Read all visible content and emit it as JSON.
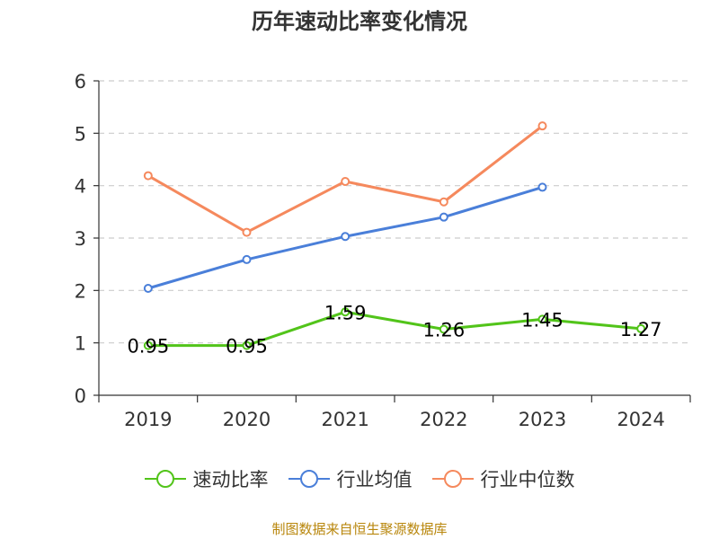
{
  "chart_data": {
    "type": "line",
    "title": "历年速动比率变化情况",
    "categories": [
      "2019",
      "2020",
      "2021",
      "2022",
      "2023",
      "2024"
    ],
    "ylim": [
      0,
      6
    ],
    "yticks": [
      "0",
      "1",
      "2",
      "3",
      "4",
      "5",
      "6"
    ],
    "grid": true,
    "legend_position": "bottom",
    "series": [
      {
        "name": "速动比率",
        "color": "#52c41a",
        "show_labels": true,
        "values": [
          0.95,
          0.95,
          1.59,
          1.26,
          1.45,
          1.27
        ],
        "labels": [
          "0.95",
          "0.95",
          "1.59",
          "1.26",
          "1.45",
          "1.27"
        ]
      },
      {
        "name": "行业均值",
        "color": "#4a7fd9",
        "show_labels": false,
        "values": [
          2.04,
          2.59,
          3.03,
          3.4,
          3.97,
          null
        ]
      },
      {
        "name": "行业中位数",
        "color": "#f5895d",
        "show_labels": false,
        "values": [
          4.19,
          3.11,
          4.08,
          3.69,
          5.14,
          null
        ]
      }
    ]
  },
  "source": "制图数据来自恒生聚源数据库"
}
